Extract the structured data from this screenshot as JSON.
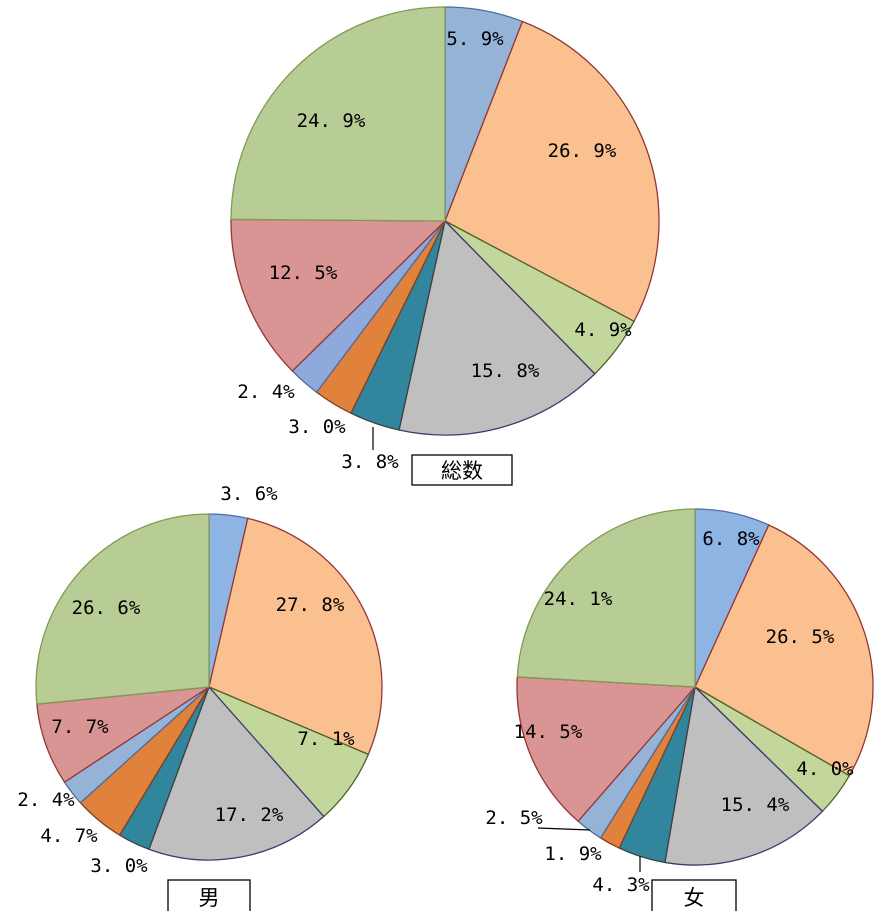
{
  "chart_data": [
    {
      "type": "pie",
      "title": "総数",
      "unit": "%",
      "start_angle": "12 o'clock",
      "direction": "clockwise",
      "slice_colors": [
        "#95b3d7",
        "#fac090",
        "#c3d69b",
        "#bfbfbf",
        "#31859c",
        "#e0813c",
        "#8ea9db",
        "#d99594",
        "#b7cd95"
      ],
      "border_colors": [
        "#4f6d9e",
        "#943634",
        "#4f6228",
        "#3c3c6e",
        "#404040",
        "#7f3f1f",
        "#4f6d9e",
        "#943634",
        "#7f9b55"
      ],
      "values": [
        5.9,
        26.9,
        4.9,
        15.8,
        3.8,
        3.0,
        2.4,
        12.5,
        24.9
      ],
      "labels": [
        "5. 9%",
        "26. 9%",
        "4. 9%",
        "15. 8%",
        "3. 8%",
        "3. 0%",
        "2. 4%",
        "12. 5%",
        "24. 9%"
      ]
    },
    {
      "type": "pie",
      "title": "男",
      "unit": "%",
      "start_angle": "12 o'clock",
      "direction": "clockwise",
      "slice_colors": [
        "#8eb4e3",
        "#fac090",
        "#c3d69b",
        "#bfbfbf",
        "#31859c",
        "#e0813c",
        "#95b3d7",
        "#d99594",
        "#b7cd95"
      ],
      "border_colors": [
        "#4f6d9e",
        "#943634",
        "#4f6228",
        "#3c3c6e",
        "#404040",
        "#7f3f1f",
        "#4f6d9e",
        "#943634",
        "#7f9b55"
      ],
      "values": [
        3.6,
        27.8,
        7.1,
        17.2,
        3.0,
        4.7,
        2.4,
        7.7,
        26.6
      ],
      "labels": [
        "3. 6%",
        "27. 8%",
        "7. 1%",
        "17. 2%",
        "3. 0%",
        "4. 7%",
        "2. 4%",
        "7. 7%",
        "26. 6%"
      ]
    },
    {
      "type": "pie",
      "title": "女",
      "unit": "%",
      "start_angle": "12 o'clock",
      "direction": "clockwise",
      "slice_colors": [
        "#8eb4e3",
        "#fac090",
        "#c3d69b",
        "#bfbfbf",
        "#31859c",
        "#e0813c",
        "#95b3d7",
        "#d99594",
        "#b7cd95"
      ],
      "border_colors": [
        "#4f6d9e",
        "#943634",
        "#4f6228",
        "#3c3c6e",
        "#404040",
        "#7f3f1f",
        "#4f6d9e",
        "#943634",
        "#7f9b55"
      ],
      "values": [
        6.8,
        26.5,
        4.0,
        15.4,
        4.3,
        1.9,
        2.5,
        14.5,
        24.1
      ],
      "labels": [
        "6. 8%",
        "26. 5%",
        "4. 0%",
        "15. 4%",
        "4. 3%",
        "1. 9%",
        "2. 5%",
        "14. 5%",
        "24. 1%"
      ]
    }
  ]
}
